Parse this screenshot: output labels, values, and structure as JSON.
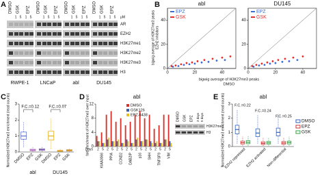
{
  "chart_data": [
    {
      "type": "blot",
      "panel": "A",
      "lanes": [
        "DMSO",
        "GSK",
        "EPZ"
      ],
      "doses": [
        1,
        5,
        1,
        5
      ],
      "dose_unit": "μM",
      "rows": [
        "AR",
        "EZH2",
        "H3K27me1",
        "H3K27me2",
        "H3K27me3",
        "H3"
      ],
      "groups": [
        "RWPE-1",
        "LNCaP",
        "abl",
        "DU145"
      ]
    },
    {
      "type": "scatter",
      "panel": "B",
      "x_label": [
        "bigwig average of H3K27me3 peaks",
        "DMSO"
      ],
      "y_label": [
        "bigwig average of H3K27me3 peaks",
        "EZH2 inhibitors"
      ],
      "xlim": [
        0,
        50
      ],
      "ylim": [
        0,
        50
      ],
      "xticks": [
        0,
        20,
        40
      ],
      "yticks": [
        0,
        20,
        40
      ],
      "legend": "upper left",
      "subplots": [
        {
          "title": "abl",
          "series": [
            {
              "name": "EPZ",
              "color": "#3a6fd8",
              "x": [
                4,
                8,
                12,
                16,
                20,
                25,
                30,
                36,
                42
              ],
              "y": [
                1.5,
                2,
                3,
                3.5,
                4,
                5,
                5.5,
                6.5,
                7
              ]
            },
            {
              "name": "GSK",
              "color": "#e0302c",
              "x": [
                3,
                6,
                10,
                14,
                18,
                22,
                27,
                33,
                40,
                46
              ],
              "y": [
                2,
                2.5,
                3.5,
                4.5,
                5,
                6,
                7,
                8,
                9,
                10
              ]
            }
          ]
        },
        {
          "title": "DU145",
          "series": [
            {
              "name": "EPZ",
              "color": "#3a6fd8",
              "x": [
                4,
                8,
                12,
                16,
                20,
                25,
                30,
                36
              ],
              "y": [
                1.5,
                2.5,
                3,
                4,
                4.5,
                5.5,
                6,
                7
              ]
            },
            {
              "name": "GSK",
              "color": "#e0302c",
              "x": [
                3,
                6,
                10,
                14,
                18,
                22,
                27,
                33,
                40
              ],
              "y": [
                2,
                3,
                4,
                5,
                6,
                7,
                8,
                9,
                10
              ]
            }
          ]
        }
      ]
    },
    {
      "type": "box",
      "panel": "C",
      "y_label": "Normalized H3K27me3 enrichment (read counts)",
      "ylim": [
        0,
        3
      ],
      "yticks": [
        0,
        1,
        2,
        3
      ],
      "categories": [
        "DMSO",
        "EPZ",
        "GSK",
        "DMSO",
        "EPZ",
        "GSK"
      ],
      "groups": [
        "abl",
        "DU145"
      ],
      "colors": [
        "#5b6fd0",
        "#b070c0",
        "#8060b0",
        "#e8b020",
        "#e0a020",
        "#d09030"
      ],
      "boxes": [
        {
          "low": 0.3,
          "q1": 0.8,
          "median": 1.0,
          "q3": 1.25,
          "high": 1.9
        },
        {
          "low": 0.02,
          "q1": 0.08,
          "median": 0.12,
          "q3": 0.17,
          "high": 0.3
        },
        {
          "low": 0.03,
          "q1": 0.1,
          "median": 0.15,
          "q3": 0.2,
          "high": 0.35
        },
        {
          "low": 0.2,
          "q1": 0.75,
          "median": 1.0,
          "q3": 1.3,
          "high": 2.1
        },
        {
          "low": 0.01,
          "q1": 0.04,
          "median": 0.07,
          "q3": 0.1,
          "high": 0.2
        },
        {
          "low": 0.02,
          "q1": 0.06,
          "median": 0.1,
          "q3": 0.14,
          "high": 0.25
        }
      ],
      "annotations": [
        "F.C.=0.12",
        "F.C.=0.07"
      ]
    },
    {
      "type": "bar",
      "panel": "D",
      "title": "abl",
      "y_label": "fold enrichment of H3K27me3 over input",
      "ylim": [
        0,
        12
      ],
      "yticks": [
        0,
        4,
        8,
        12
      ],
      "x_label": "Days",
      "categories": [
        "2",
        "5",
        "2",
        "5",
        "2",
        "5",
        "2",
        "5",
        "2",
        "5",
        "2",
        "5",
        "2",
        "5",
        "2",
        "5"
      ],
      "groups": [
        "KIAA0066",
        "PPIA",
        "CCND2",
        "DAB2IP",
        "p16",
        "SHH",
        "TNFSF9",
        "VIM"
      ],
      "series": [
        {
          "name": "DMSO",
          "color": "#d8302a",
          "values": [
            3,
            4,
            9,
            10,
            7,
            8,
            6,
            7,
            9,
            10,
            8,
            9,
            5,
            6,
            9,
            9
          ]
        },
        {
          "name": "GSK126",
          "color": "#3a5fb0",
          "values": [
            1.5,
            1,
            2,
            1.5,
            1.5,
            1,
            2,
            1,
            2,
            1.5,
            2,
            1.5,
            1,
            1,
            2,
            1.5
          ]
        },
        {
          "name": "EPZ-6438",
          "color": "#e8c020",
          "values": [
            1.5,
            1,
            2.5,
            1.5,
            2,
            1,
            1.5,
            1,
            2.5,
            1.5,
            2,
            1,
            1.5,
            1,
            2,
            1
          ]
        }
      ],
      "inset": {
        "lanes": [
          "DMSO",
          "GSK",
          "EPZ"
        ],
        "times": [
          "3 days",
          "5 days"
        ],
        "rows": [
          "H3K27me3",
          "H3"
        ]
      }
    },
    {
      "type": "grouped-box",
      "panel": "E",
      "title": "abl",
      "y_label": "Normalized H3K27me3 enrichment (read counts)",
      "ylim": [
        0,
        3
      ],
      "yticks": [
        0,
        1,
        2,
        3
      ],
      "categories": [
        "EZH2 repressed",
        "EZH2 activated",
        "Non-differential"
      ],
      "series": [
        {
          "name": "DMSO",
          "color": "#3060c0",
          "boxes": [
            {
              "low": 0.2,
              "q1": 0.9,
              "median": 1.2,
              "q3": 1.5,
              "high": 2.6
            },
            {
              "low": 0.2,
              "q1": 0.7,
              "median": 0.95,
              "q3": 1.25,
              "high": 2.2
            },
            {
              "low": 0.2,
              "q1": 0.75,
              "median": 1.0,
              "q3": 1.3,
              "high": 2.3
            }
          ]
        },
        {
          "name": "EPZ",
          "color": "#d03030",
          "boxes": [
            {
              "low": 0.05,
              "q1": 0.18,
              "median": 0.27,
              "q3": 0.38,
              "high": 0.7
            },
            {
              "low": 0.05,
              "q1": 0.15,
              "median": 0.23,
              "q3": 0.33,
              "high": 0.6
            },
            {
              "low": 0.05,
              "q1": 0.16,
              "median": 0.25,
              "q3": 0.35,
              "high": 0.65
            }
          ]
        },
        {
          "name": "GSK",
          "color": "#30a040",
          "boxes": [
            {
              "low": 0.05,
              "q1": 0.2,
              "median": 0.3,
              "q3": 0.42,
              "high": 0.75
            },
            {
              "low": 0.05,
              "q1": 0.17,
              "median": 0.26,
              "q3": 0.36,
              "high": 0.65
            },
            {
              "low": 0.05,
              "q1": 0.18,
              "median": 0.28,
              "q3": 0.38,
              "high": 0.7
            }
          ]
        }
      ],
      "annotations": [
        "F.C.=0.22",
        "F.C.=0.24",
        "F.C.=0.25"
      ]
    }
  ]
}
